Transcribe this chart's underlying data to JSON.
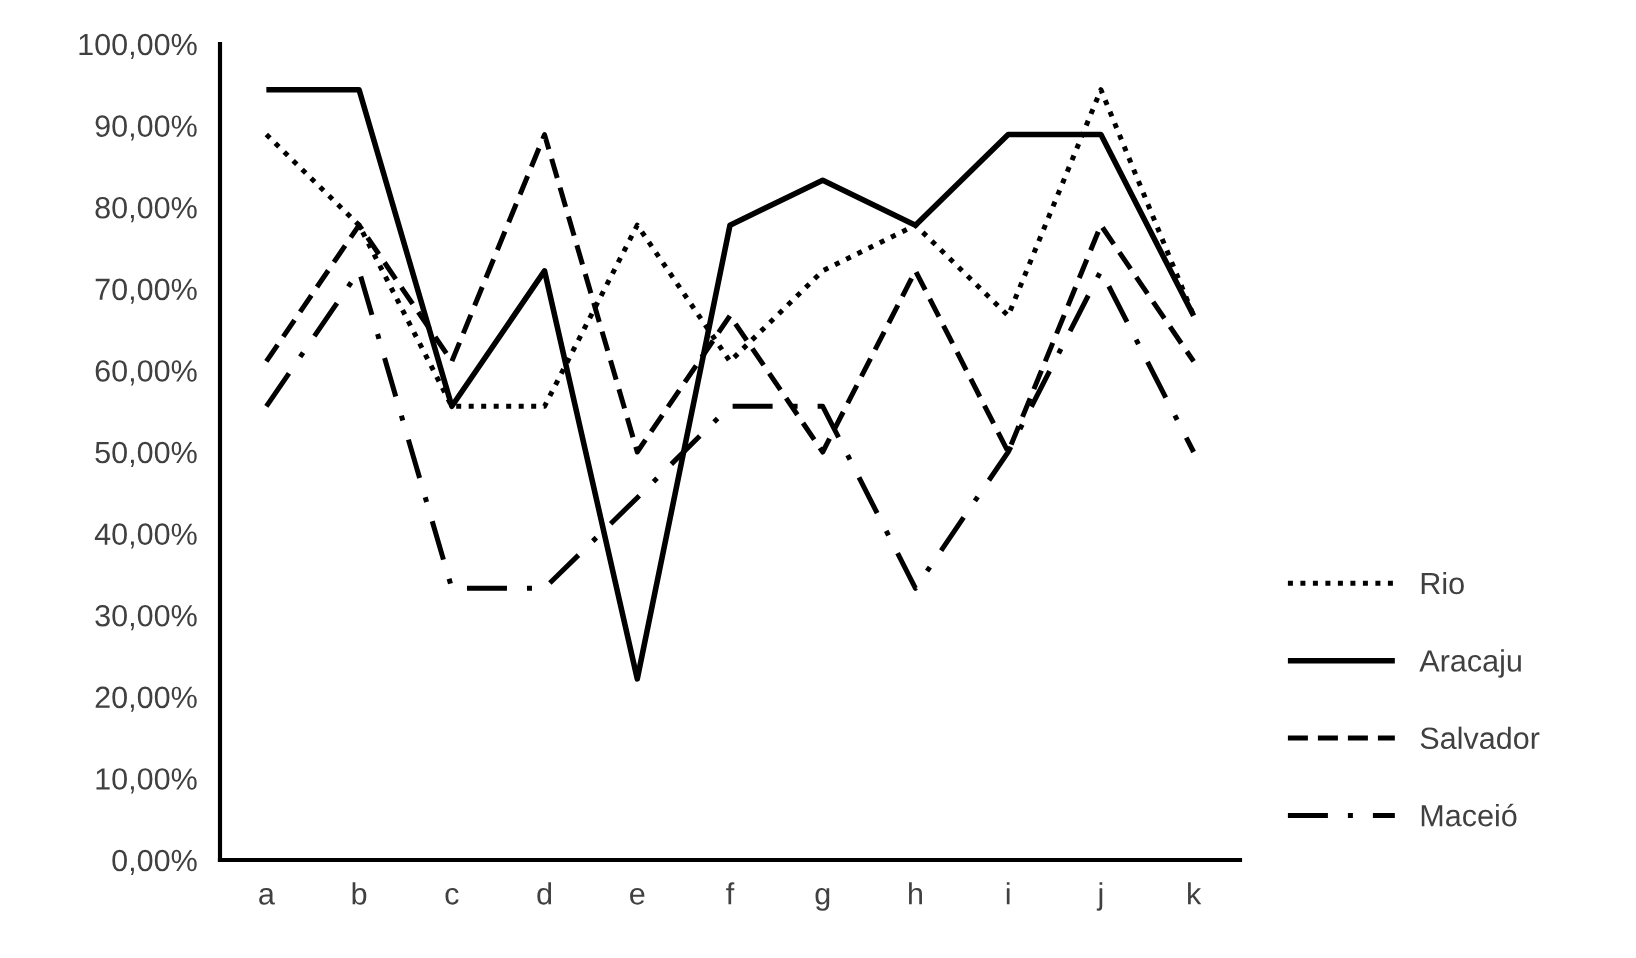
{
  "chart_data": {
    "type": "line",
    "categories": [
      "a",
      "b",
      "c",
      "d",
      "e",
      "f",
      "g",
      "h",
      "i",
      "j",
      "k"
    ],
    "series": [
      {
        "name": "Rio",
        "color": "#000000",
        "line_style": "dotted",
        "values": [
          88.9,
          77.8,
          55.6,
          55.6,
          77.8,
          61.1,
          72.2,
          77.8,
          66.7,
          94.4,
          66.7
        ]
      },
      {
        "name": "Aracaju",
        "color": "#000000",
        "line_style": "solid",
        "values": [
          94.4,
          94.4,
          55.6,
          72.2,
          22.2,
          77.8,
          83.3,
          77.8,
          88.9,
          88.9,
          66.7
        ]
      },
      {
        "name": "Salvador",
        "color": "#000000",
        "line_style": "dashed",
        "values": [
          61.1,
          77.8,
          61.1,
          88.9,
          50.0,
          66.7,
          50.0,
          72.2,
          50.0,
          77.8,
          61.1
        ]
      },
      {
        "name": "Maceió",
        "color": "#000000",
        "line_style": "dashdot",
        "values": [
          55.6,
          72.2,
          33.3,
          33.3,
          44.4,
          55.6,
          55.6,
          33.3,
          50.0,
          72.2,
          50.0
        ]
      }
    ],
    "ylim": [
      0,
      100
    ],
    "yticks": [
      {
        "value": 0,
        "label": "0,00%"
      },
      {
        "value": 10,
        "label": "10,00%"
      },
      {
        "value": 20,
        "label": "20,00%"
      },
      {
        "value": 30,
        "label": "30,00%"
      },
      {
        "value": 40,
        "label": "40,00%"
      },
      {
        "value": 50,
        "label": "50,00%"
      },
      {
        "value": 60,
        "label": "60,00%"
      },
      {
        "value": 70,
        "label": "70,00%"
      },
      {
        "value": 80,
        "label": "80,00%"
      },
      {
        "value": 90,
        "label": "90,00%"
      },
      {
        "value": 100,
        "label": "100,00%"
      }
    ],
    "grid": false,
    "legend": "right",
    "marker": "none"
  }
}
